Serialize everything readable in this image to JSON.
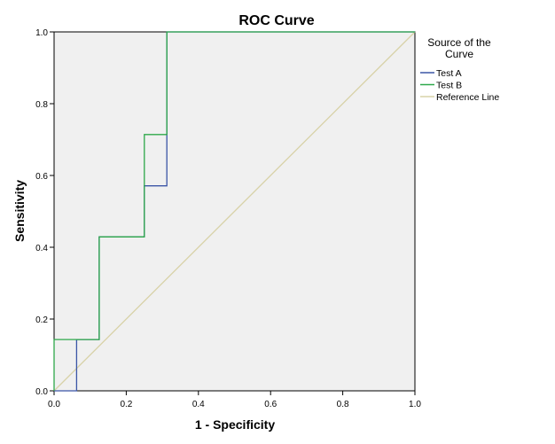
{
  "chart_data": {
    "type": "line",
    "title": "ROC Curve",
    "xlabel": "1 - Specificity",
    "ylabel": "Sensitivity",
    "xlim": [
      0,
      1
    ],
    "ylim": [
      0,
      1
    ],
    "x_ticks": [
      "0.0",
      "0.2",
      "0.4",
      "0.6",
      "0.8",
      "1.0"
    ],
    "y_ticks": [
      "0.0",
      "0.2",
      "0.4",
      "0.6",
      "0.8",
      "1.0"
    ],
    "grid": false,
    "legend": {
      "position": "right",
      "title_line1": "Source of the",
      "title_line2": "Curve"
    },
    "series": [
      {
        "name": "Test A",
        "color": "#3b55a6",
        "x": [
          0,
          0.0625,
          0.0625,
          0.125,
          0.125,
          0.25,
          0.25,
          0.3125,
          0.3125,
          1.0
        ],
        "y": [
          0,
          0,
          0.143,
          0.143,
          0.429,
          0.429,
          0.571,
          0.571,
          1.0,
          1.0
        ]
      },
      {
        "name": "Test B",
        "color": "#2ea84a",
        "x": [
          0,
          0,
          0.125,
          0.125,
          0.25,
          0.25,
          0.3125,
          0.3125,
          1.0
        ],
        "y": [
          0,
          0.143,
          0.143,
          0.429,
          0.429,
          0.714,
          0.714,
          1.0,
          1.0
        ]
      },
      {
        "name": "Reference Line",
        "color": "#d8d2a8",
        "x": [
          0,
          1
        ],
        "y": [
          0,
          1
        ]
      }
    ]
  }
}
